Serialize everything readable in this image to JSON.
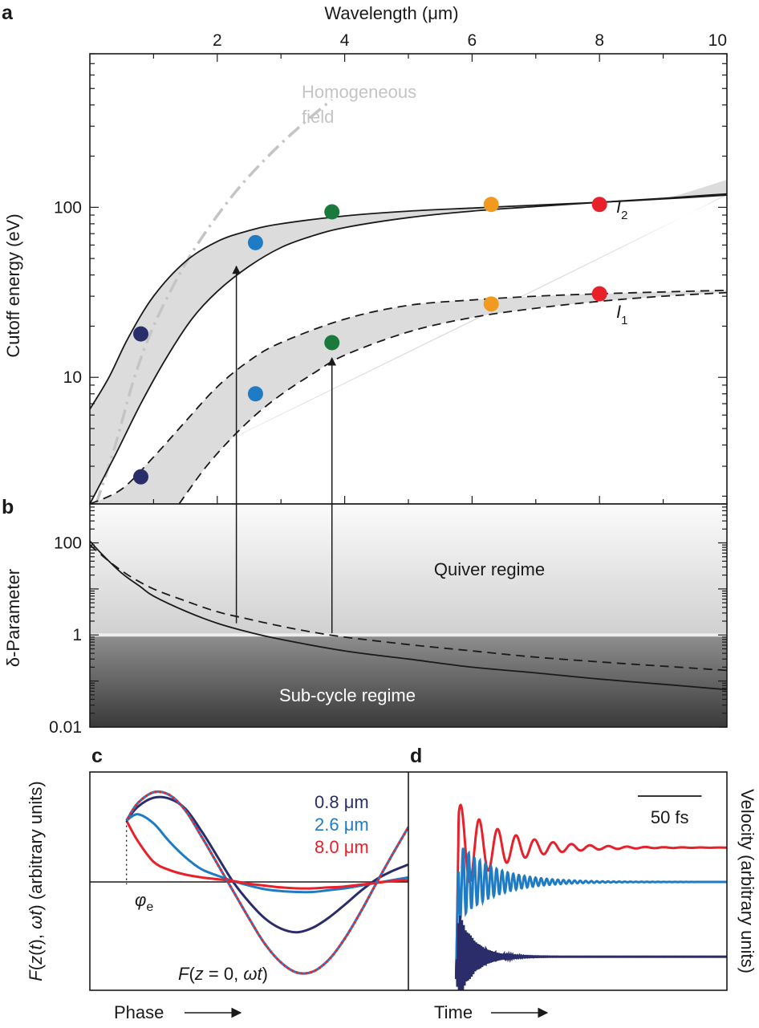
{
  "colors": {
    "lambda_0_8": "#2b2d6b",
    "lambda_2_6": "#1f7cc4",
    "lambda_3_8": "#1a7a3e",
    "lambda_6_3": "#f29a1f",
    "lambda_8_0": "#e8202a",
    "band": "#dcdcdc",
    "homogeneous": "#c4c4c4",
    "curves": "#1a1a1a"
  },
  "chart_data": [
    {
      "panel": "a",
      "type": "scatter",
      "title": "",
      "xlabel": "Wavelength (μm)",
      "xlabel_position": "top",
      "ylabel": "Cutoff energy (eV)",
      "xlim": [
        0.0,
        10.0
      ],
      "ylim": [
        1.8,
        800
      ],
      "yscale": "log",
      "x_ticks": [
        2,
        4,
        6,
        8,
        10
      ],
      "x_tick_labels": [
        "2",
        "4",
        "6",
        "8",
        "10"
      ],
      "y_ticks": [
        10,
        100
      ],
      "y_tick_labels": [
        "10",
        "100"
      ],
      "annotations": [
        {
          "text": "Homogeneous",
          "x": 4.45,
          "y": 520
        },
        {
          "text": "field",
          "x": 4.45,
          "y": 300
        },
        {
          "text": "I",
          "sub": "2",
          "x": 9.25,
          "y": 80
        },
        {
          "text": "I",
          "sub": "1",
          "x": 9.25,
          "y": 17
        }
      ],
      "series": [
        {
          "name": "0.8 μm",
          "color": "#2b2d6b",
          "points": [
            {
              "x": 0.8,
              "y": 18
            },
            {
              "x": 0.8,
              "y": 2.6
            }
          ]
        },
        {
          "name": "2.6 μm",
          "color": "#1f7cc4",
          "points": [
            {
              "x": 2.6,
              "y": 62
            },
            {
              "x": 2.6,
              "y": 8
            }
          ]
        },
        {
          "name": "3.8 μm",
          "color": "#1a7a3e",
          "points": [
            {
              "x": 3.8,
              "y": 94
            },
            {
              "x": 3.8,
              "y": 16
            }
          ]
        },
        {
          "name": "6.3 μm",
          "color": "#f29a1f",
          "points": [
            {
              "x": 6.3,
              "y": 104
            },
            {
              "x": 6.3,
              "y": 27
            }
          ]
        },
        {
          "name": "8.0 μm",
          "color": "#e8202a",
          "points": [
            {
              "x": 8.0,
              "y": 104
            },
            {
              "x": 8.0,
              "y": 31
            }
          ]
        }
      ],
      "curves": {
        "homogeneous_field": {
          "style": "dash-dot",
          "color": "#c4c4c4",
          "x": [
            0.1,
            0.4,
            0.7,
            1.0,
            1.4,
            1.8,
            2.3,
            2.8,
            3.3,
            3.8
          ],
          "y": [
            1.8,
            4.0,
            10,
            20,
            40,
            70,
            125,
            200,
            300,
            430
          ]
        },
        "I2_upper": {
          "style": "solid",
          "x": [
            0.0,
            0.3,
            0.6,
            1.0,
            1.5,
            2.0,
            2.5,
            3.0,
            4.0,
            5.0,
            6.0,
            7.0,
            8.0,
            9.0,
            10.0
          ],
          "y": [
            6.5,
            10,
            17,
            30,
            48,
            63,
            73,
            80,
            89,
            95,
            99,
            103,
            107,
            112,
            118
          ]
        },
        "I2_lower": {
          "style": "solid",
          "x": [
            0.0,
            0.4,
            0.8,
            1.2,
            1.6,
            2.0,
            2.5,
            3.0,
            3.5,
            4.0,
            5.0,
            6.0,
            7.0,
            8.0,
            9.0,
            10.0
          ],
          "y": [
            1.8,
            3.5,
            7,
            13,
            22,
            32,
            45,
            58,
            68,
            76,
            87,
            95,
            101,
            107,
            113,
            120
          ]
        },
        "I1_upper": {
          "style": "dashed",
          "x": [
            0.0,
            0.5,
            1.0,
            1.5,
            2.0,
            2.5,
            3.0,
            4.0,
            5.0,
            6.0,
            7.0,
            8.0,
            9.0,
            10.0
          ],
          "y": [
            1.8,
            2.2,
            3.4,
            5.5,
            8.8,
            12.5,
            16,
            22,
            26.5,
            28.5,
            30,
            31,
            31.8,
            32.5
          ]
        },
        "I1_lower": {
          "style": "dashed",
          "x": [
            1.4,
            1.8,
            2.2,
            2.6,
            3.0,
            3.5,
            4.0,
            5.0,
            6.0,
            7.0,
            8.0,
            9.0,
            10.0
          ],
          "y": [
            1.8,
            2.9,
            4.3,
            6.0,
            7.9,
            10.5,
            13.5,
            18.5,
            22.5,
            25.5,
            28,
            30,
            31.5
          ]
        }
      }
    },
    {
      "panel": "b",
      "type": "line",
      "title": "",
      "xlabel": "",
      "ylabel": "δ-Parameter",
      "xlim": [
        0.0,
        10.0
      ],
      "ylim": [
        0.01,
        700
      ],
      "yscale": "log",
      "y_ticks": [
        0.01,
        1,
        100
      ],
      "y_tick_labels": [
        "0.01",
        "1",
        "100"
      ],
      "regions": [
        {
          "label": "Quiver regime",
          "y_from": 1,
          "y_to": 700
        },
        {
          "label": "Sub-cycle regime",
          "y_from": 0.01,
          "y_to": 1
        }
      ],
      "threshold": 1,
      "series": [
        {
          "style": "solid",
          "x": [
            0.0,
            0.2,
            0.5,
            0.8,
            1.0,
            1.5,
            2.0,
            2.5,
            3.0,
            4.0,
            5.0,
            6.0,
            7.0,
            8.0,
            9.0,
            10.0
          ],
          "y": [
            110,
            55,
            22,
            11,
            7.0,
            3.3,
            1.8,
            1.15,
            0.8,
            0.45,
            0.3,
            0.2,
            0.15,
            0.11,
            0.085,
            0.065
          ]
        },
        {
          "style": "dashed",
          "x": [
            0.0,
            0.3,
            0.6,
            1.0,
            1.5,
            2.0,
            2.5,
            3.0,
            3.5,
            4.0,
            5.0,
            6.0,
            7.0,
            8.0,
            9.0,
            10.0
          ],
          "y": [
            90,
            40,
            20,
            10,
            5.5,
            3.2,
            2.2,
            1.55,
            1.15,
            0.9,
            0.62,
            0.45,
            0.33,
            0.26,
            0.21,
            0.17
          ]
        }
      ],
      "arrows": [
        {
          "x": 2.3,
          "from_y": 1.8,
          "to_y_panel_a": 45
        },
        {
          "x": 3.8,
          "from_y": 1.1,
          "to_y_panel_a": 13
        }
      ]
    },
    {
      "panel": "c",
      "type": "line",
      "title": "",
      "xlabel": "Phase",
      "ylabel_parts": [
        "F",
        "(",
        "z",
        "(",
        "t",
        "), ",
        "ω",
        "t",
        ") (arbitrary units)"
      ],
      "xlim": [
        0,
        1
      ],
      "ylim": [
        -1.3,
        1.3
      ],
      "annotations": [
        {
          "text": "φ",
          "sub": "e"
        },
        {
          "text_parts": [
            "F",
            "(",
            "z",
            " = 0, ",
            "ω",
            "t",
            ")"
          ]
        }
      ],
      "legend": [
        {
          "label": "0.8 μm",
          "color": "#2b2d6b"
        },
        {
          "label": "2.6 μm",
          "color": "#1f7cc4"
        },
        {
          "label": "8.0 μm",
          "color": "#e8202a"
        }
      ],
      "phase_start": 0.115,
      "series": [
        {
          "name": "0.8 μm",
          "color": "#2b2d6b",
          "style": "solid",
          "x": [
            0.115,
            0.15,
            0.2,
            0.25,
            0.3,
            0.35,
            0.4,
            0.45,
            0.5,
            0.55,
            0.6,
            0.65,
            0.7,
            0.75,
            0.8,
            0.85,
            0.9,
            0.95,
            1.0
          ],
          "y": [
            0.67,
            0.82,
            0.92,
            0.91,
            0.8,
            0.56,
            0.28,
            0.0,
            -0.22,
            -0.4,
            -0.51,
            -0.55,
            -0.5,
            -0.39,
            -0.25,
            -0.1,
            0.03,
            0.12,
            0.19
          ]
        },
        {
          "name": "2.6 μm",
          "color": "#1f7cc4",
          "style": "solid",
          "x": [
            0.115,
            0.15,
            0.2,
            0.25,
            0.3,
            0.35,
            0.4,
            0.45,
            0.5,
            0.55,
            0.6,
            0.65,
            0.7,
            0.75,
            0.8,
            0.85,
            0.9,
            0.95,
            1.0
          ],
          "y": [
            0.67,
            0.74,
            0.64,
            0.44,
            0.27,
            0.14,
            0.07,
            0.01,
            -0.04,
            -0.08,
            -0.1,
            -0.11,
            -0.11,
            -0.09,
            -0.07,
            -0.04,
            -0.01,
            0.02,
            0.05
          ]
        },
        {
          "name": "8.0 μm",
          "color": "#e8202a",
          "style": "solid",
          "x": [
            0.115,
            0.15,
            0.2,
            0.25,
            0.3,
            0.35,
            0.4,
            0.45,
            0.5,
            0.55,
            0.6,
            0.65,
            0.7,
            0.75,
            0.8,
            0.85,
            0.9,
            0.95,
            1.0
          ],
          "y": [
            0.67,
            0.45,
            0.22,
            0.13,
            0.08,
            0.05,
            0.03,
            0.01,
            -0.02,
            -0.04,
            -0.06,
            -0.07,
            -0.07,
            -0.06,
            -0.05,
            -0.03,
            -0.01,
            0.01,
            0.02
          ]
        },
        {
          "name": "F(z = 0, ωt) blue",
          "color": "#1f7cc4",
          "style": "dotted",
          "x": [
            0.115,
            0.15,
            0.2,
            0.25,
            0.3,
            0.35,
            0.4,
            0.45,
            0.5,
            0.55,
            0.6,
            0.65,
            0.7,
            0.75,
            0.8,
            0.85,
            0.9,
            0.95,
            1.0
          ],
          "y": [
            0.67,
            0.86,
            0.98,
            0.95,
            0.78,
            0.5,
            0.2,
            -0.1,
            -0.4,
            -0.68,
            -0.88,
            -0.99,
            -0.98,
            -0.85,
            -0.62,
            -0.33,
            -0.01,
            0.3,
            0.6
          ]
        },
        {
          "name": "F(z = 0, ωt) red",
          "color": "#e8202a",
          "style": "dotted",
          "x": [
            0.115,
            0.15,
            0.2,
            0.25,
            0.3,
            0.35,
            0.4,
            0.45,
            0.5,
            0.55,
            0.6,
            0.65,
            0.7,
            0.75,
            0.8,
            0.85,
            0.9,
            0.95,
            1.0
          ],
          "y": [
            0.67,
            0.86,
            0.98,
            0.95,
            0.78,
            0.5,
            0.2,
            -0.1,
            -0.4,
            -0.68,
            -0.88,
            -0.99,
            -0.98,
            -0.85,
            -0.62,
            -0.33,
            -0.01,
            0.3,
            0.6
          ]
        }
      ]
    },
    {
      "panel": "d",
      "type": "line",
      "title": "",
      "xlabel": "Time",
      "ylabel": "Velocity (arbitrary units)",
      "xlim": [
        0,
        100
      ],
      "ylim": [
        -1.7,
        1.75
      ],
      "scale_bar": {
        "label": "50 fs",
        "length": 20
      },
      "start_time": 15,
      "series": [
        {
          "name": "8.0 μm",
          "color": "#e8202a",
          "level": 0.62,
          "amplitude": 0.85,
          "period": 5.8,
          "decay": 14
        },
        {
          "name": "2.6 μm",
          "color": "#1f7cc4",
          "level": 0.0,
          "amplitude": 0.75,
          "period": 1.75,
          "decay": 11
        },
        {
          "name": "0.8 μm",
          "color": "#2b2d6b",
          "level": -1.35,
          "amplitude": 0.95,
          "period": 0.55,
          "decay": 5
        }
      ]
    }
  ]
}
